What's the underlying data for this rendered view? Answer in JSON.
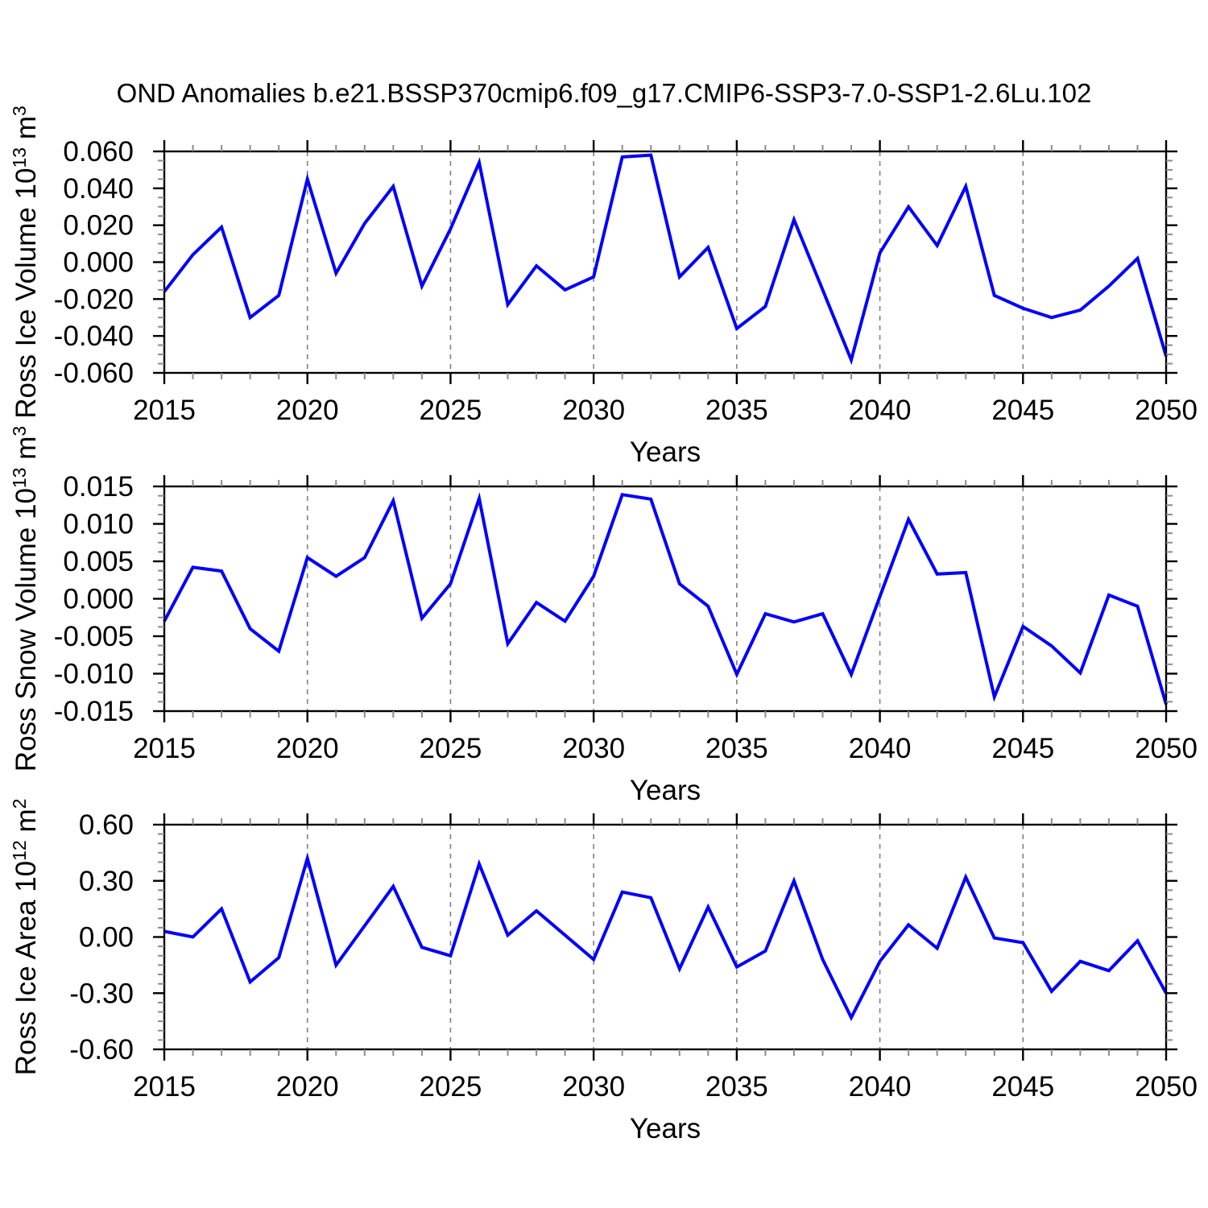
{
  "title": "OND Anomalies b.e21.BSSP370cmip6.f09_g17.CMIP6-SSP3-7.0-SSP1-2.6Lu.102",
  "colors": {
    "line": "#0000ff",
    "frame": "#000000",
    "minor_tick": "#8c8c8c",
    "grid": "#808080",
    "text": "#000000",
    "background": "#ffffff"
  },
  "x_axis": {
    "label": "Years",
    "years_start": 2015,
    "years_end": 2050,
    "minor_step": 1,
    "major_ticks": [
      2015,
      2020,
      2025,
      2030,
      2035,
      2040,
      2045,
      2050
    ],
    "major_labels": [
      "2015",
      "2020",
      "2025",
      "2030",
      "2035",
      "2040",
      "2045",
      "2050"
    ],
    "grid_years": [
      2020,
      2025,
      2030,
      2035,
      2040,
      2045
    ]
  },
  "chart_data": [
    {
      "type": "line",
      "name": "ross-ice-volume",
      "ylabel_text": "Ross Ice Volume 10^13 m^3",
      "ylabel_parts": [
        {
          "t": "Ross Ice Volume 10"
        },
        {
          "t": "13",
          "sup": true
        },
        {
          "t": " m"
        },
        {
          "t": "3",
          "sup": true
        }
      ],
      "ylim": [
        -0.06,
        0.06
      ],
      "yticks": [
        0.06,
        0.04,
        0.02,
        0.0,
        -0.02,
        -0.04,
        -0.06
      ],
      "ytick_labels": [
        "0.060",
        "0.040",
        "0.020",
        "0.000",
        "-0.020",
        "-0.040",
        "-0.060"
      ],
      "y_minor_divisions": 4,
      "xlabel": "Years",
      "years": [
        2015,
        2016,
        2017,
        2018,
        2019,
        2020,
        2021,
        2022,
        2023,
        2024,
        2025,
        2026,
        2027,
        2028,
        2029,
        2030,
        2031,
        2032,
        2033,
        2034,
        2035,
        2036,
        2037,
        2038,
        2039,
        2040,
        2041,
        2042,
        2043,
        2044,
        2045,
        2046,
        2047,
        2048,
        2049,
        2050
      ],
      "values": [
        -0.016,
        0.004,
        0.019,
        -0.03,
        -0.018,
        0.045,
        -0.006,
        0.021,
        0.041,
        -0.013,
        0.018,
        0.054,
        -0.023,
        -0.002,
        -0.015,
        -0.008,
        0.057,
        0.058,
        -0.008,
        0.008,
        -0.036,
        -0.024,
        0.023,
        -0.015,
        -0.053,
        0.005,
        0.03,
        0.009,
        0.041,
        -0.018,
        -0.025,
        -0.03,
        -0.026,
        -0.013,
        0.002,
        -0.051
      ]
    },
    {
      "type": "line",
      "name": "ross-snow-volume",
      "ylabel_text": "Ross Snow Volume 10^13 m^3",
      "ylabel_parts": [
        {
          "t": "Ross Snow Volume 10"
        },
        {
          "t": "13",
          "sup": true
        },
        {
          "t": " m"
        },
        {
          "t": "3",
          "sup": true
        }
      ],
      "ylim": [
        -0.015,
        0.015
      ],
      "yticks": [
        0.015,
        0.01,
        0.005,
        0.0,
        -0.005,
        -0.01,
        -0.015
      ],
      "ytick_labels": [
        "0.015",
        "0.010",
        "0.005",
        "0.000",
        "-0.005",
        "-0.010",
        "-0.015"
      ],
      "y_minor_divisions": 4,
      "xlabel": "Years",
      "years": [
        2015,
        2016,
        2017,
        2018,
        2019,
        2020,
        2021,
        2022,
        2023,
        2024,
        2025,
        2026,
        2027,
        2028,
        2029,
        2030,
        2031,
        2032,
        2033,
        2034,
        2035,
        2036,
        2037,
        2038,
        2039,
        2040,
        2041,
        2042,
        2043,
        2044,
        2045,
        2046,
        2047,
        2048,
        2049,
        2050
      ],
      "values": [
        -0.003,
        0.0042,
        0.0037,
        -0.004,
        -0.007,
        0.0055,
        0.003,
        0.0055,
        0.0131,
        -0.0026,
        0.002,
        0.0134,
        -0.006,
        -0.0005,
        -0.003,
        0.003,
        0.0139,
        0.0133,
        0.002,
        -0.001,
        -0.0101,
        -0.002,
        -0.0031,
        -0.002,
        -0.0101,
        0.0003,
        0.0106,
        0.0033,
        0.0035,
        -0.0131,
        -0.0037,
        -0.0063,
        -0.0099,
        0.0005,
        -0.001,
        -0.0141
      ]
    },
    {
      "type": "line",
      "name": "ross-ice-area",
      "ylabel_text": "Ross Ice Area 10^12 m^2",
      "ylabel_parts": [
        {
          "t": "Ross Ice Area 10"
        },
        {
          "t": "12",
          "sup": true
        },
        {
          "t": " m"
        },
        {
          "t": "2",
          "sup": true
        }
      ],
      "ylim": [
        -0.6,
        0.6
      ],
      "yticks": [
        0.6,
        0.3,
        0.0,
        -0.3,
        -0.6
      ],
      "ytick_labels": [
        "0.60",
        "0.30",
        "0.00",
        "-0.30",
        "-0.60"
      ],
      "y_minor_divisions": 6,
      "xlabel": "Years",
      "years": [
        2015,
        2016,
        2017,
        2018,
        2019,
        2020,
        2021,
        2022,
        2023,
        2024,
        2025,
        2026,
        2027,
        2028,
        2029,
        2030,
        2031,
        2032,
        2033,
        2034,
        2035,
        2036,
        2037,
        2038,
        2039,
        2040,
        2041,
        2042,
        2043,
        2044,
        2045,
        2046,
        2047,
        2048,
        2049,
        2050
      ],
      "values": [
        0.03,
        0.0,
        0.15,
        -0.24,
        -0.11,
        0.42,
        -0.15,
        0.06,
        0.27,
        -0.055,
        -0.1,
        0.39,
        0.01,
        0.14,
        0.01,
        -0.12,
        0.24,
        0.21,
        -0.17,
        0.16,
        -0.16,
        -0.075,
        0.3,
        -0.12,
        -0.43,
        -0.13,
        0.065,
        -0.06,
        0.32,
        -0.005,
        -0.03,
        -0.29,
        -0.13,
        -0.18,
        -0.02,
        -0.3
      ]
    }
  ]
}
